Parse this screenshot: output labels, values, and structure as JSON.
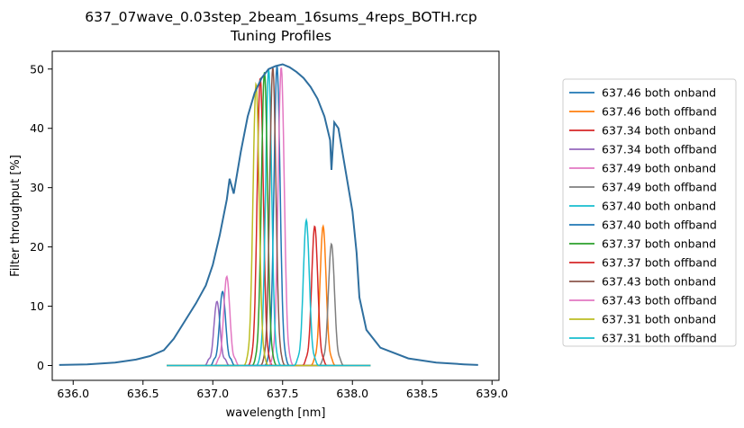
{
  "chart_data": {
    "type": "line",
    "title": "637_07wave_0.03step_2beam_16sums_4reps_BOTH.rcp",
    "subtitle": "Tuning Profiles",
    "xlabel": "wavelength [nm]",
    "ylabel": "Filter throughput [%]",
    "xlim": [
      635.85,
      639.05
    ],
    "ylim": [
      -2.5,
      53
    ],
    "xticks": [
      636.0,
      636.5,
      637.0,
      637.5,
      638.0,
      638.5,
      639.0
    ],
    "xtick_labels": [
      "636.0",
      "636.5",
      "637.0",
      "637.5",
      "638.0",
      "638.5",
      "639.0"
    ],
    "yticks": [
      0,
      10,
      20,
      30,
      40,
      50
    ],
    "ytick_labels": [
      "0",
      "10",
      "20",
      "30",
      "40",
      "50"
    ],
    "grid": false,
    "legend_position": "outside-right",
    "envelope": {
      "color": "#2f6f9f",
      "x": [
        635.9,
        636.1,
        636.3,
        636.45,
        636.55,
        636.65,
        636.72,
        636.8,
        636.88,
        636.95,
        637.0,
        637.05,
        637.1,
        637.12,
        637.15,
        637.2,
        637.25,
        637.3,
        637.35,
        637.4,
        637.45,
        637.5,
        637.55,
        637.6,
        637.65,
        637.7,
        637.75,
        637.8,
        637.84,
        637.85,
        637.87,
        637.9,
        637.95,
        638.0,
        638.03,
        638.05,
        638.1,
        638.2,
        638.4,
        638.6,
        638.8,
        638.9
      ],
      "y": [
        0.1,
        0.2,
        0.5,
        1.0,
        1.6,
        2.6,
        4.5,
        7.5,
        10.5,
        13.5,
        17,
        22,
        28,
        31.5,
        29,
        36,
        42,
        46,
        48.5,
        50,
        50.5,
        50.8,
        50.3,
        49.5,
        48.5,
        47,
        45,
        42,
        38,
        33,
        41,
        40,
        33,
        26,
        19,
        11.5,
        6,
        3,
        1.2,
        0.5,
        0.2,
        0.1
      ]
    },
    "series": [
      {
        "name": "637.46 both onband",
        "color": "#1f77b4",
        "center": 637.46,
        "peak": 50.5
      },
      {
        "name": "637.46 both offband",
        "color": "#ff7f0e",
        "center": 637.79,
        "peak": 23.5
      },
      {
        "name": "637.34 both onband",
        "color": "#d62728",
        "center": 637.34,
        "peak": 48.5
      },
      {
        "name": "637.34 both offband",
        "color": "#9467bd",
        "center": 637.03,
        "peak": 10.8
      },
      {
        "name": "637.49 both onband",
        "color": "#e377c2",
        "center": 637.49,
        "peak": 50.3
      },
      {
        "name": "637.49 both offband",
        "color": "#7f7f7f",
        "center": 637.85,
        "peak": 20.5
      },
      {
        "name": "637.40 both onband",
        "color": "#17becf",
        "center": 637.4,
        "peak": 50.0
      },
      {
        "name": "637.40 both offband",
        "color": "#1f77b4",
        "center": 637.07,
        "peak": 12.5
      },
      {
        "name": "637.37 both onband",
        "color": "#2ca02c",
        "center": 637.37,
        "peak": 49.5
      },
      {
        "name": "637.37 both offband",
        "color": "#d62728",
        "center": 637.73,
        "peak": 23.5
      },
      {
        "name": "637.43 both onband",
        "color": "#8c564b",
        "center": 637.43,
        "peak": 50.3
      },
      {
        "name": "637.43 both offband",
        "color": "#e377c2",
        "center": 637.1,
        "peak": 15.0
      },
      {
        "name": "637.31 both onband",
        "color": "#bcbd22",
        "center": 637.31,
        "peak": 47.5
      },
      {
        "name": "637.31 both offband",
        "color": "#17becf",
        "center": 637.67,
        "peak": 24.5
      }
    ],
    "series_x_range": [
      636.67,
      638.13
    ]
  }
}
